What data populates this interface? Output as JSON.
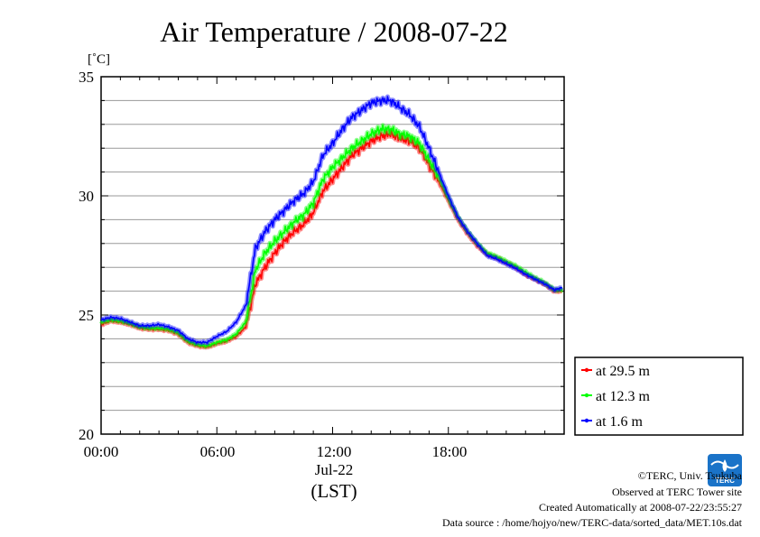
{
  "chart_data": {
    "type": "line",
    "title": "Air Temperature / 2008-07-22",
    "ylabel": "[˚C]",
    "xlabel": "(LST)",
    "date_label": "Jul-22",
    "ylim": [
      20,
      35
    ],
    "xlim": [
      0,
      24
    ],
    "y_ticks": [
      "20",
      "25",
      "30",
      "35"
    ],
    "x_ticks": [
      "00:00",
      "06:00",
      "12:00",
      "18:00"
    ],
    "grid": true,
    "legend_position": "bottom-right-outside",
    "series": [
      {
        "name": "at 29.5 m",
        "color": "#ff0000",
        "x": [
          0,
          0.5,
          1,
          1.5,
          2,
          2.5,
          3,
          3.5,
          4,
          4.5,
          5,
          5.5,
          6,
          6.5,
          7,
          7.5,
          8,
          8.5,
          9,
          9.5,
          10,
          10.5,
          11,
          11.5,
          12,
          12.5,
          13,
          13.5,
          14,
          14.5,
          15,
          15.5,
          16,
          16.5,
          17,
          17.5,
          18,
          18.5,
          19,
          19.5,
          20,
          20.5,
          21,
          21.5,
          22,
          22.5,
          23,
          23.5,
          23.9
        ],
        "values": [
          24.6,
          24.75,
          24.7,
          24.6,
          24.45,
          24.4,
          24.4,
          24.35,
          24.2,
          23.85,
          23.7,
          23.65,
          23.8,
          23.9,
          24.1,
          24.5,
          26.3,
          27.0,
          27.6,
          28.1,
          28.5,
          28.8,
          29.3,
          30.2,
          30.7,
          31.2,
          31.7,
          32.0,
          32.3,
          32.5,
          32.6,
          32.4,
          32.3,
          32.0,
          31.3,
          30.6,
          29.8,
          29.0,
          28.4,
          27.9,
          27.55,
          27.4,
          27.2,
          27.0,
          26.7,
          26.5,
          26.3,
          26.0,
          26.0
        ]
      },
      {
        "name": "at 12.3 m",
        "color": "#00ff00",
        "x": [
          0,
          0.5,
          1,
          1.5,
          2,
          2.5,
          3,
          3.5,
          4,
          4.5,
          5,
          5.5,
          6,
          6.5,
          7,
          7.5,
          8,
          8.5,
          9,
          9.5,
          10,
          10.5,
          11,
          11.5,
          12,
          12.5,
          13,
          13.5,
          14,
          14.5,
          15,
          15.5,
          16,
          16.5,
          17,
          17.5,
          18,
          18.5,
          19,
          19.5,
          20,
          20.5,
          21,
          21.5,
          22,
          22.5,
          23,
          23.5,
          23.9
        ],
        "values": [
          24.7,
          24.8,
          24.75,
          24.65,
          24.5,
          24.45,
          24.45,
          24.4,
          24.25,
          23.9,
          23.75,
          23.7,
          23.85,
          23.95,
          24.2,
          24.7,
          26.9,
          27.6,
          28.1,
          28.5,
          28.9,
          29.2,
          29.7,
          30.7,
          31.2,
          31.6,
          32.0,
          32.3,
          32.6,
          32.8,
          32.8,
          32.6,
          32.5,
          32.2,
          31.5,
          30.8,
          29.9,
          29.1,
          28.5,
          28.0,
          27.6,
          27.45,
          27.25,
          27.05,
          26.8,
          26.55,
          26.35,
          26.05,
          26.05
        ]
      },
      {
        "name": "at 1.6 m",
        "color": "#0000ff",
        "x": [
          0,
          0.5,
          1,
          1.5,
          2,
          2.5,
          3,
          3.5,
          4,
          4.5,
          5,
          5.5,
          6,
          6.5,
          7,
          7.5,
          8,
          8.5,
          9,
          9.5,
          10,
          10.5,
          11,
          11.5,
          12,
          12.5,
          13,
          13.5,
          14,
          14.5,
          15,
          15.5,
          16,
          16.5,
          17,
          17.5,
          18,
          18.5,
          19,
          19.5,
          20,
          20.5,
          21,
          21.5,
          22,
          22.5,
          23,
          23.5,
          23.9
        ],
        "values": [
          24.8,
          24.9,
          24.85,
          24.7,
          24.55,
          24.55,
          24.6,
          24.5,
          24.35,
          24.0,
          23.85,
          23.85,
          24.1,
          24.3,
          24.7,
          25.4,
          27.8,
          28.5,
          29.0,
          29.4,
          29.8,
          30.1,
          30.6,
          31.7,
          32.2,
          32.8,
          33.3,
          33.6,
          33.9,
          34.0,
          34.0,
          33.7,
          33.4,
          32.9,
          32.0,
          31.0,
          30.0,
          29.1,
          28.5,
          28.0,
          27.5,
          27.35,
          27.15,
          26.95,
          26.7,
          26.5,
          26.3,
          26.05,
          26.15
        ]
      }
    ]
  },
  "credits": {
    "copyright": "©TERC, Univ. Tsukuba",
    "observed": "Observed at TERC Tower site",
    "created": "Created Automatically at 2008-07-22/23:55:27",
    "source": "Data source : /home/hojyo/new/TERC-data/sorted_data/MET.10s.dat",
    "logo_text": "TERC"
  }
}
